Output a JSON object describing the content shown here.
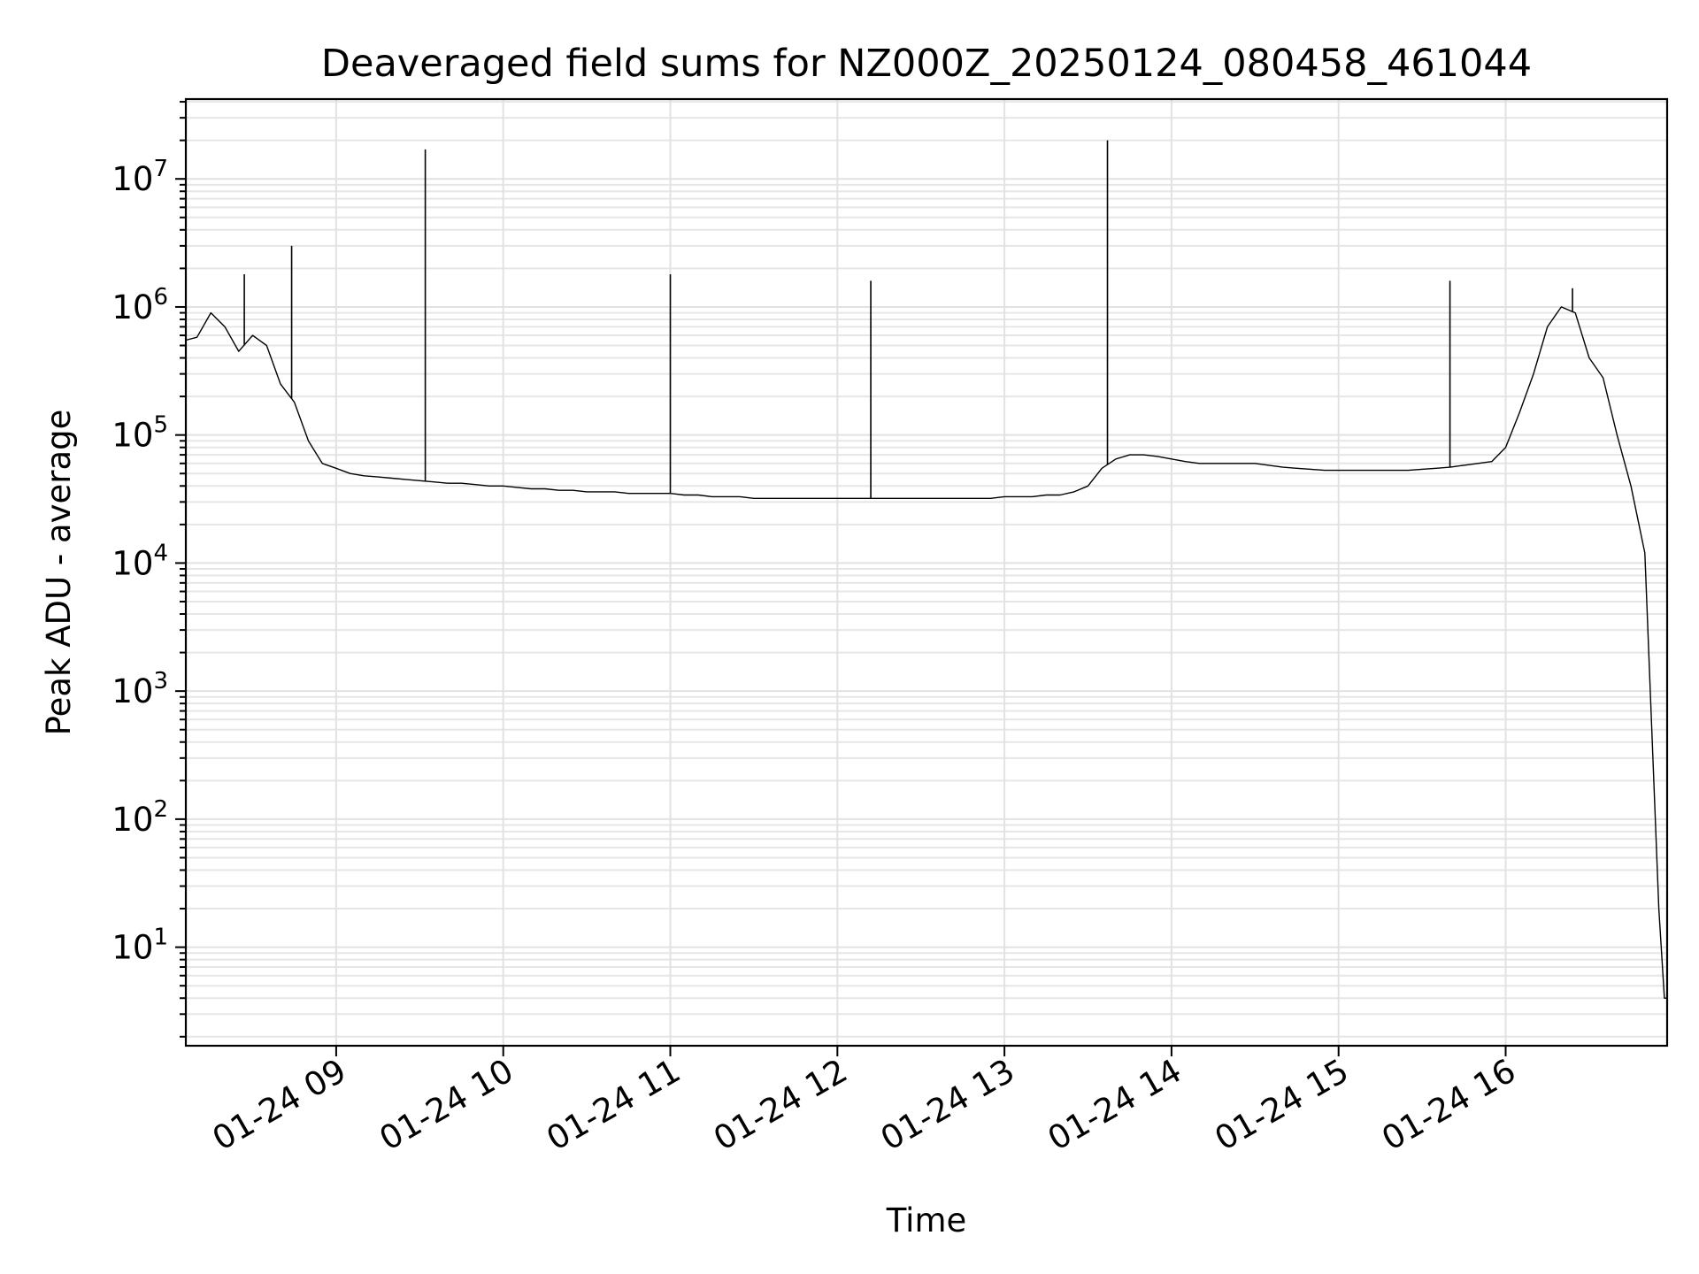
{
  "chart_data": {
    "type": "line",
    "title": "Deaveraged field sums for NZ000Z_20250124_080458_461044",
    "xlabel": "Time",
    "ylabel": "Peak ADU - average",
    "yscale": "log",
    "grid": true,
    "xlim": [
      "2025-01-24 08:06",
      "2025-01-24 16:58"
    ],
    "ylim": [
      1.7,
      42000000
    ],
    "x_ticks": [
      {
        "value": "2025-01-24 09:00",
        "label": "01-24 09"
      },
      {
        "value": "2025-01-24 10:00",
        "label": "01-24 10"
      },
      {
        "value": "2025-01-24 11:00",
        "label": "01-24 11"
      },
      {
        "value": "2025-01-24 12:00",
        "label": "01-24 12"
      },
      {
        "value": "2025-01-24 13:00",
        "label": "01-24 13"
      },
      {
        "value": "2025-01-24 14:00",
        "label": "01-24 14"
      },
      {
        "value": "2025-01-24 15:00",
        "label": "01-24 15"
      },
      {
        "value": "2025-01-24 16:00",
        "label": "01-24 16"
      }
    ],
    "y_ticks": [
      {
        "value": 10,
        "base": "10",
        "exp": "1"
      },
      {
        "value": 100,
        "base": "10",
        "exp": "2"
      },
      {
        "value": 1000,
        "base": "10",
        "exp": "3"
      },
      {
        "value": 10000,
        "base": "10",
        "exp": "4"
      },
      {
        "value": 100000,
        "base": "10",
        "exp": "5"
      },
      {
        "value": 1000000,
        "base": "10",
        "exp": "6"
      },
      {
        "value": 10000000,
        "base": "10",
        "exp": "7"
      }
    ],
    "series": [
      {
        "color": "#000000",
        "x": [
          "2025-01-24 08:06",
          "2025-01-24 08:10",
          "2025-01-24 08:15",
          "2025-01-24 08:20",
          "2025-01-24 08:25",
          "2025-01-24 08:30",
          "2025-01-24 08:35",
          "2025-01-24 08:40",
          "2025-01-24 08:45",
          "2025-01-24 08:50",
          "2025-01-24 08:55",
          "2025-01-24 09:00",
          "2025-01-24 09:05",
          "2025-01-24 09:10",
          "2025-01-24 09:15",
          "2025-01-24 09:20",
          "2025-01-24 09:25",
          "2025-01-24 09:30",
          "2025-01-24 09:35",
          "2025-01-24 09:40",
          "2025-01-24 09:45",
          "2025-01-24 09:50",
          "2025-01-24 09:55",
          "2025-01-24 10:00",
          "2025-01-24 10:05",
          "2025-01-24 10:10",
          "2025-01-24 10:15",
          "2025-01-24 10:20",
          "2025-01-24 10:25",
          "2025-01-24 10:30",
          "2025-01-24 10:35",
          "2025-01-24 10:40",
          "2025-01-24 10:45",
          "2025-01-24 10:50",
          "2025-01-24 10:55",
          "2025-01-24 11:00",
          "2025-01-24 11:05",
          "2025-01-24 11:10",
          "2025-01-24 11:15",
          "2025-01-24 11:20",
          "2025-01-24 11:25",
          "2025-01-24 11:30",
          "2025-01-24 11:35",
          "2025-01-24 11:40",
          "2025-01-24 11:45",
          "2025-01-24 11:50",
          "2025-01-24 11:55",
          "2025-01-24 12:00",
          "2025-01-24 12:05",
          "2025-01-24 12:10",
          "2025-01-24 12:15",
          "2025-01-24 12:20",
          "2025-01-24 12:25",
          "2025-01-24 12:30",
          "2025-01-24 12:35",
          "2025-01-24 12:40",
          "2025-01-24 12:45",
          "2025-01-24 12:50",
          "2025-01-24 12:55",
          "2025-01-24 13:00",
          "2025-01-24 13:05",
          "2025-01-24 13:10",
          "2025-01-24 13:15",
          "2025-01-24 13:20",
          "2025-01-24 13:25",
          "2025-01-24 13:30",
          "2025-01-24 13:35",
          "2025-01-24 13:40",
          "2025-01-24 13:45",
          "2025-01-24 13:50",
          "2025-01-24 13:55",
          "2025-01-24 14:00",
          "2025-01-24 14:05",
          "2025-01-24 14:10",
          "2025-01-24 14:15",
          "2025-01-24 14:20",
          "2025-01-24 14:25",
          "2025-01-24 14:30",
          "2025-01-24 14:35",
          "2025-01-24 14:40",
          "2025-01-24 14:45",
          "2025-01-24 14:50",
          "2025-01-24 14:55",
          "2025-01-24 15:00",
          "2025-01-24 15:05",
          "2025-01-24 15:10",
          "2025-01-24 15:15",
          "2025-01-24 15:20",
          "2025-01-24 15:25",
          "2025-01-24 15:30",
          "2025-01-24 15:35",
          "2025-01-24 15:40",
          "2025-01-24 15:45",
          "2025-01-24 15:50",
          "2025-01-24 15:55",
          "2025-01-24 16:00",
          "2025-01-24 16:05",
          "2025-01-24 16:10",
          "2025-01-24 16:15",
          "2025-01-24 16:20",
          "2025-01-24 16:25",
          "2025-01-24 16:30",
          "2025-01-24 16:35",
          "2025-01-24 16:40",
          "2025-01-24 16:45",
          "2025-01-24 16:50",
          "2025-01-24 16:55",
          "2025-01-24 16:57",
          "2025-01-24 16:58"
        ],
        "y": [
          550000,
          580000,
          900000,
          700000,
          450000,
          600000,
          500000,
          250000,
          180000,
          90000,
          60000,
          55000,
          50000,
          48000,
          47000,
          46000,
          45000,
          44000,
          43000,
          42000,
          42000,
          41000,
          40000,
          40000,
          39000,
          38000,
          38000,
          37000,
          37000,
          36000,
          36000,
          36000,
          35000,
          35000,
          35000,
          35000,
          34000,
          34000,
          33000,
          33000,
          33000,
          32000,
          32000,
          32000,
          32000,
          32000,
          32000,
          32000,
          32000,
          32000,
          32000,
          32000,
          32000,
          32000,
          32000,
          32000,
          32000,
          32000,
          32000,
          33000,
          33000,
          33000,
          34000,
          34000,
          36000,
          40000,
          55000,
          65000,
          70000,
          70000,
          68000,
          65000,
          62000,
          60000,
          60000,
          60000,
          60000,
          60000,
          58000,
          56000,
          55000,
          54000,
          53000,
          53000,
          53000,
          53000,
          53000,
          53000,
          53000,
          54000,
          55000,
          56000,
          58000,
          60000,
          62000,
          80000,
          150000,
          300000,
          700000,
          1000000,
          900000,
          400000,
          280000,
          100000,
          40000,
          12000,
          20,
          4,
          4
        ],
        "spikes": [
          {
            "x": "2025-01-24 08:27",
            "y": 1800000
          },
          {
            "x": "2025-01-24 08:44",
            "y": 3000000
          },
          {
            "x": "2025-01-24 09:32",
            "y": 17000000
          },
          {
            "x": "2025-01-24 11:00",
            "y": 1800000
          },
          {
            "x": "2025-01-24 12:12",
            "y": 1600000
          },
          {
            "x": "2025-01-24 13:37",
            "y": 20000000
          },
          {
            "x": "2025-01-24 15:40",
            "y": 1600000
          },
          {
            "x": "2025-01-24 16:24",
            "y": 1400000
          }
        ]
      }
    ]
  }
}
